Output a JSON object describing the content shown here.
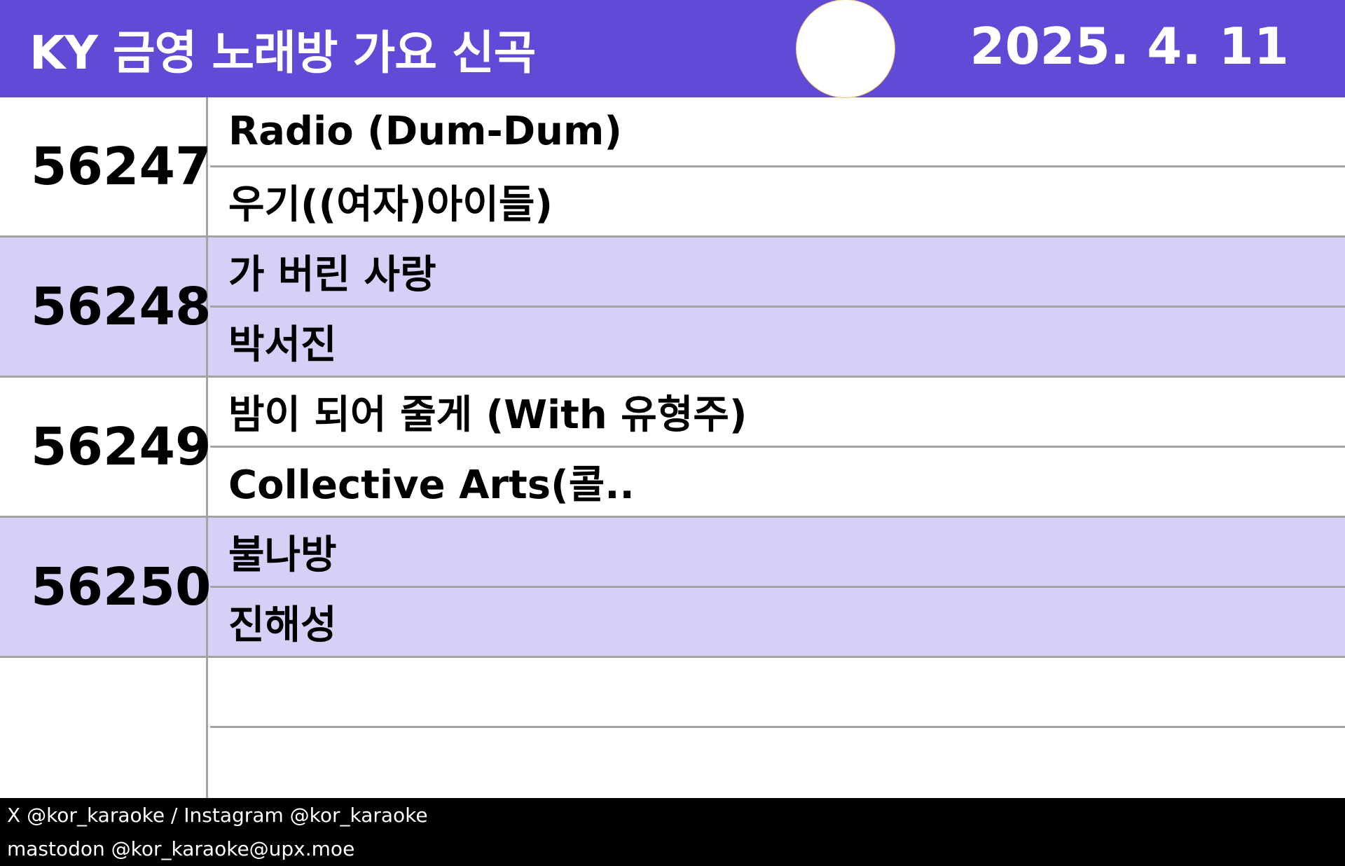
{
  "header": {
    "title": "KY 금영 노래방 가요 신곡",
    "date": "2025. 4. 11"
  },
  "songs": [
    {
      "number": "56247",
      "title": "Radio (Dum-Dum)",
      "artist": "우기((여자)아이들)"
    },
    {
      "number": "56248",
      "title": "가 버린 사랑",
      "artist": "박서진"
    },
    {
      "number": "56249",
      "title": "밤이 되어 줄게 (With 유형주)",
      "artist": "Collective Arts(콜.."
    },
    {
      "number": "56250",
      "title": "불나방",
      "artist": "진해성"
    },
    {
      "number": "",
      "title": "",
      "artist": ""
    }
  ],
  "footer": {
    "line1": "X @kor_karaoke / Instagram @kor_karaoke",
    "line2": "mastodon @kor_karaoke@upx.moe"
  },
  "colors": {
    "header": "#5f4bd6",
    "alt_row": "#d5d0f5"
  }
}
